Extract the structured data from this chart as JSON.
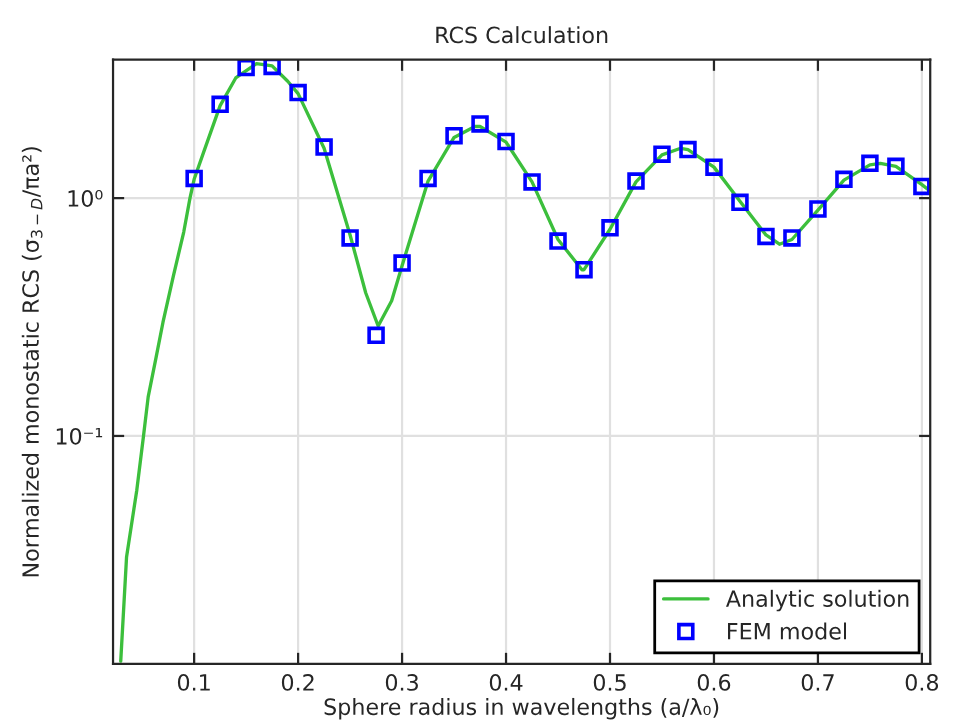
{
  "chart_data": {
    "type": "line",
    "title": "RCS Calculation",
    "xlabel": "Sphere radius in wavelengths (a/λ₀)",
    "ylabel": "Normalized monostatic RCS (σ$_{3−D}$/πa²)",
    "series": [
      {
        "name": "Analytic solution",
        "color": "#3cbf3c",
        "marker": "none",
        "x": [
          0.0294,
          0.035,
          0.0448,
          0.0513,
          0.0558,
          0.0635,
          0.07,
          0.08,
          0.09,
          0.096,
          0.1,
          0.11,
          0.125,
          0.14,
          0.16,
          0.175,
          0.19,
          0.2,
          0.225,
          0.25,
          0.265,
          0.277,
          0.29,
          0.3,
          0.325,
          0.35,
          0.37,
          0.375,
          0.4,
          0.425,
          0.45,
          0.473,
          0.475,
          0.5,
          0.525,
          0.55,
          0.568,
          0.575,
          0.6,
          0.625,
          0.65,
          0.663,
          0.675,
          0.7,
          0.725,
          0.75,
          0.76,
          0.775,
          0.8,
          0.808
        ],
        "values": [
          0.0113,
          0.031,
          0.059,
          0.1,
          0.146,
          0.215,
          0.3,
          0.47,
          0.72,
          1.0,
          1.2,
          1.6,
          2.45,
          3.2,
          3.68,
          3.6,
          3.1,
          2.75,
          1.62,
          0.7,
          0.4,
          0.29,
          0.37,
          0.52,
          1.18,
          1.8,
          2.0,
          2.0,
          1.72,
          1.17,
          0.67,
          0.5,
          0.5,
          0.74,
          1.17,
          1.52,
          1.62,
          1.6,
          1.35,
          0.97,
          0.7,
          0.64,
          0.67,
          0.89,
          1.19,
          1.38,
          1.4,
          1.36,
          1.14,
          1.07
        ]
      },
      {
        "name": "FEM model",
        "type": "scatter",
        "color": "#0000ff",
        "marker": "square",
        "x": [
          0.1,
          0.125,
          0.15,
          0.175,
          0.2,
          0.225,
          0.25,
          0.275,
          0.3,
          0.325,
          0.35,
          0.375,
          0.4,
          0.425,
          0.45,
          0.475,
          0.5,
          0.525,
          0.55,
          0.575,
          0.6,
          0.625,
          0.65,
          0.675,
          0.7,
          0.725,
          0.75,
          0.775,
          0.8
        ],
        "values": [
          1.21,
          2.48,
          3.54,
          3.58,
          2.78,
          1.64,
          0.68,
          0.265,
          0.533,
          1.21,
          1.83,
          2.05,
          1.73,
          1.17,
          0.66,
          0.5,
          0.75,
          1.18,
          1.53,
          1.6,
          1.35,
          0.96,
          0.69,
          0.68,
          0.9,
          1.2,
          1.4,
          1.36,
          1.12
        ]
      }
    ],
    "log": "y",
    "xlim": [
      0.022,
      0.808
    ],
    "ylim": [
      0.011,
      3.82
    ],
    "xticks": [
      0.1,
      0.2,
      0.3,
      0.4,
      0.5,
      0.6,
      0.7,
      0.8
    ],
    "yticks": [
      {
        "value": 1,
        "label": "10⁰"
      },
      {
        "value": 0.1,
        "label": "10⁻¹"
      }
    ],
    "grid": true,
    "legend": "bottom right"
  }
}
